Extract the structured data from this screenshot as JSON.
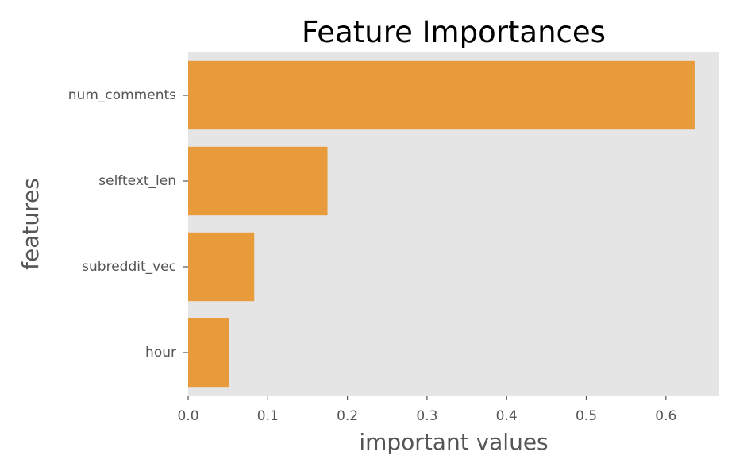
{
  "chart_data": {
    "type": "bar",
    "orientation": "horizontal",
    "title": "Feature Importances",
    "xlabel": "important values",
    "ylabel": "features",
    "categories": [
      "num_comments",
      "selftext_len",
      "subreddit_vec",
      "hour"
    ],
    "values": [
      0.636,
      0.175,
      0.083,
      0.051
    ],
    "xlim": [
      0,
      0.667
    ],
    "xticks": [
      0.0,
      0.1,
      0.2,
      0.3,
      0.4,
      0.5,
      0.6
    ],
    "xtick_labels": [
      "0.0",
      "0.1",
      "0.2",
      "0.3",
      "0.4",
      "0.5",
      "0.6"
    ],
    "grid": false,
    "legend": "none",
    "colors": {
      "bar": "#e89b3a",
      "plot_background": "#e5e5e5",
      "text": "#555555"
    }
  }
}
